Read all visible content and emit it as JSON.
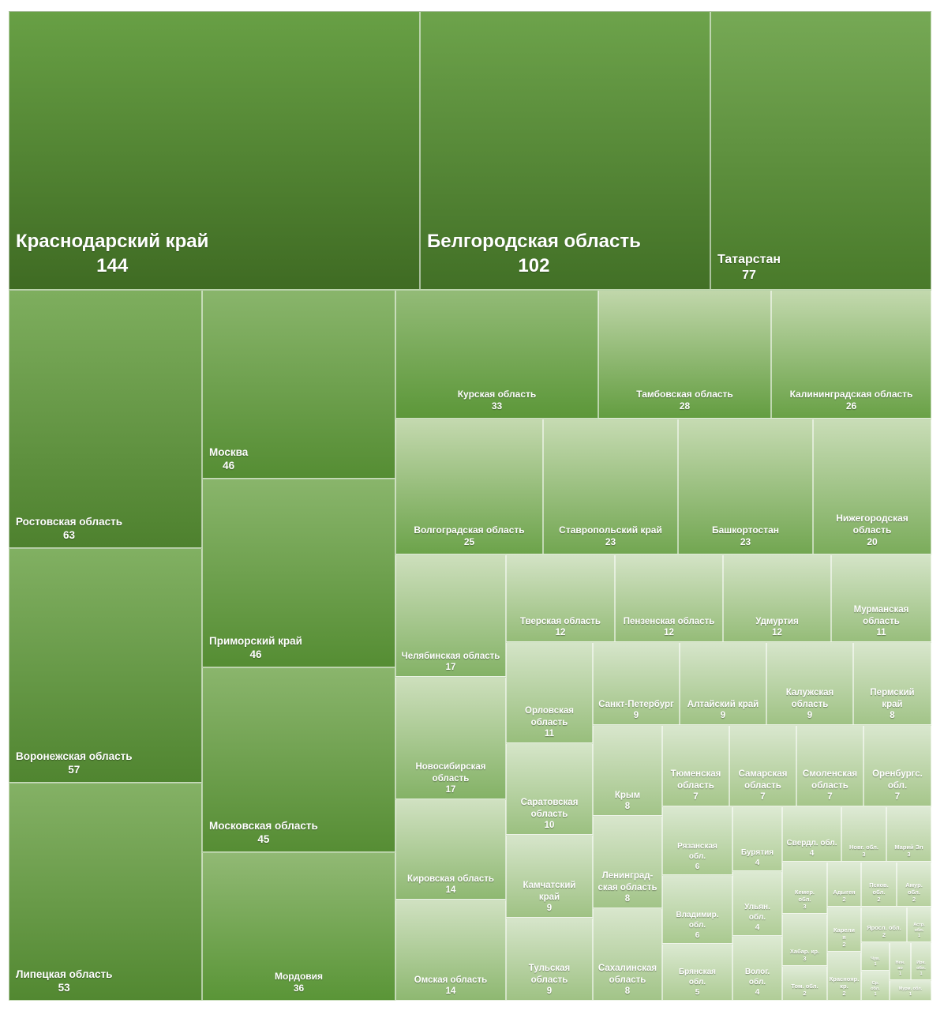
{
  "chart_data": {
    "type": "treemap",
    "title": "",
    "colors": {
      "dark": "#3f6b23",
      "mid": "#5e9a3a",
      "light": "#bfd6a8",
      "border": "#ffffff"
    },
    "items": [
      {
        "name": "Краснодарский край",
        "value": 144
      },
      {
        "name": "Белгородская область",
        "value": 102
      },
      {
        "name": "Татарстан",
        "value": 77
      },
      {
        "name": "Ростовская область",
        "value": 63
      },
      {
        "name": "Воронежская область",
        "value": 57
      },
      {
        "name": "Липецкая область",
        "value": 53
      },
      {
        "name": "Москва",
        "value": 46
      },
      {
        "name": "Приморский край",
        "value": 46
      },
      {
        "name": "Московская область",
        "value": 45
      },
      {
        "name": "Мордовия",
        "value": 36
      },
      {
        "name": "Курская область",
        "value": 33
      },
      {
        "name": "Тамбовская область",
        "value": 28
      },
      {
        "name": "Калининградская область",
        "value": 26
      },
      {
        "name": "Волгоградская область",
        "value": 25
      },
      {
        "name": "Ставропольский край",
        "value": 23
      },
      {
        "name": "Башкортостан",
        "value": 23
      },
      {
        "name": "Нижегородская\nобласть",
        "value": 20
      },
      {
        "name": "Челябинская область",
        "value": 17
      },
      {
        "name": "Новосибирская\nобласть",
        "value": 17
      },
      {
        "name": "Кировская область",
        "value": 14
      },
      {
        "name": "Омская область",
        "value": 14
      },
      {
        "name": "Тверская область",
        "value": 12
      },
      {
        "name": "Пензенская область",
        "value": 12
      },
      {
        "name": "Удмуртия",
        "value": 12
      },
      {
        "name": "Мурманская\nобласть",
        "value": 11
      },
      {
        "name": "Орловская\nобласть",
        "value": 11
      },
      {
        "name": "Саратовская\nобласть",
        "value": 10
      },
      {
        "name": "Камчатский\nкрай",
        "value": 9
      },
      {
        "name": "Тульская\nобласть",
        "value": 9
      },
      {
        "name": "Санкт-Петербург",
        "value": 9
      },
      {
        "name": "Алтайский край",
        "value": 9
      },
      {
        "name": "Калужская\nобласть",
        "value": 9
      },
      {
        "name": "Пермский\nкрай",
        "value": 8
      },
      {
        "name": "Крым",
        "value": 8
      },
      {
        "name": "Ленинград-\nская область",
        "value": 8
      },
      {
        "name": "Сахалинская\nобласть",
        "value": 8
      },
      {
        "name": "Тюменская\nобласть",
        "value": 7
      },
      {
        "name": "Самарская\nобласть",
        "value": 7
      },
      {
        "name": "Смоленская\nобласть",
        "value": 7
      },
      {
        "name": "Оренбургс.\nобл.",
        "value": 7
      },
      {
        "name": "Рязанская\nобл.",
        "value": 6
      },
      {
        "name": "Владимир.\nобл.",
        "value": 6
      },
      {
        "name": "Брянская\nобл.",
        "value": 5
      },
      {
        "name": "Бурятия",
        "value": 4
      },
      {
        "name": "Ульян.\nобл.",
        "value": 4
      },
      {
        "name": "Волог.\nобл.",
        "value": 4
      },
      {
        "name": "Свердл. обл.",
        "value": 4
      },
      {
        "name": "Новг. обл.",
        "value": 3
      },
      {
        "name": "Марий Эл",
        "value": 3
      },
      {
        "name": "Кемер.\nобл.",
        "value": 3
      },
      {
        "name": "Хабар. кр.",
        "value": 3
      },
      {
        "name": "Адыгея",
        "value": 2
      },
      {
        "name": "Псков.\nобл.",
        "value": 2
      },
      {
        "name": "Амур.\nобл.",
        "value": 2
      },
      {
        "name": "Карели\nя",
        "value": 2
      },
      {
        "name": "Яросл. обл.",
        "value": 2
      },
      {
        "name": "Том. обл.",
        "value": 2
      },
      {
        "name": "Краснояр. кр.",
        "value": 2
      },
      {
        "name": "Астр.\nобл.",
        "value": 1
      },
      {
        "name": "Чув.",
        "value": 1
      },
      {
        "name": "Нен.\nао",
        "value": 1
      },
      {
        "name": "Ирк.\nобл.",
        "value": 1
      },
      {
        "name": "Тыва",
        "value": 1
      },
      {
        "name": "Ср.\nобл.",
        "value": 1
      },
      {
        "name": "Мурм. обл.",
        "value": 1
      }
    ]
  }
}
